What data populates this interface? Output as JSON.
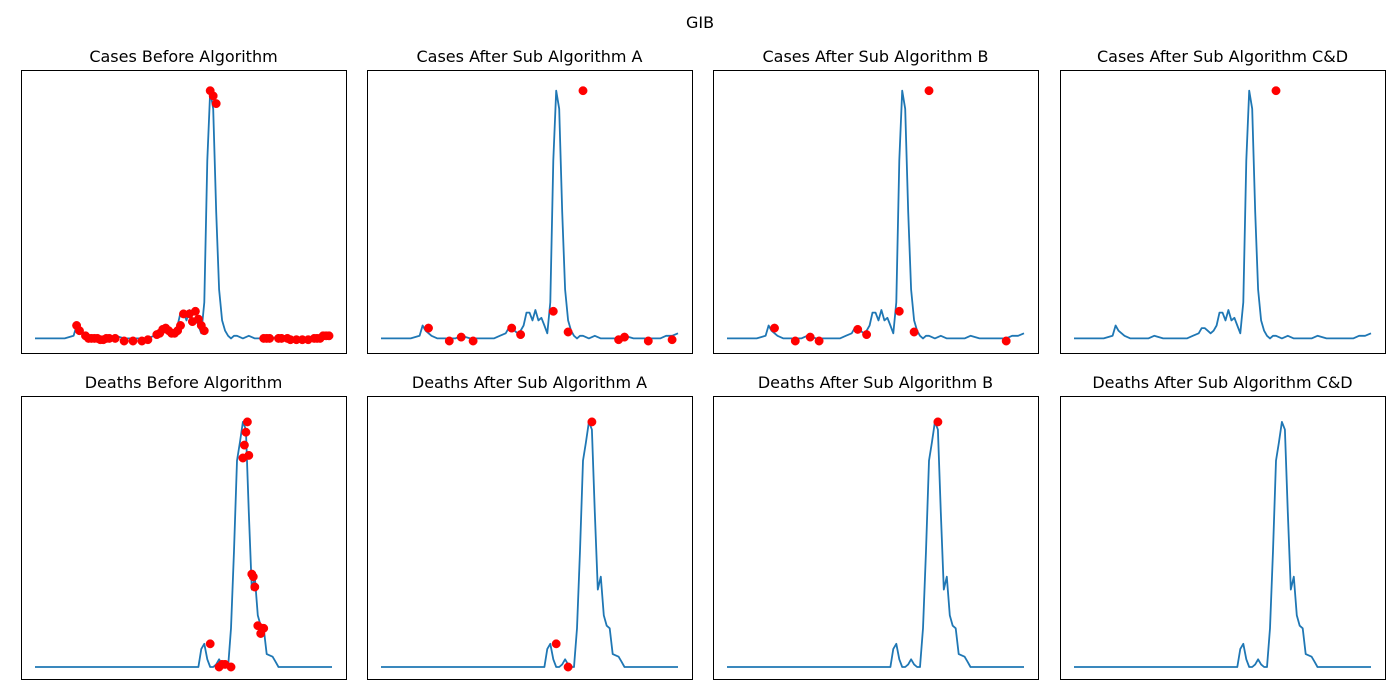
{
  "figure": {
    "suptitle": "GIB",
    "line_color": "#1f77b4",
    "marker_color": "#ff0000"
  },
  "chart_data": [
    {
      "type": "line",
      "title": "Cases Before Algorithm",
      "xlim": [
        0,
        100
      ],
      "ylim": [
        0,
        100
      ],
      "x": [
        0,
        5,
        10,
        13,
        14,
        15,
        17,
        19,
        21,
        23,
        25,
        27,
        30,
        33,
        36,
        38,
        40,
        42,
        43,
        44,
        45,
        46,
        47,
        48,
        49,
        50,
        51,
        52,
        53,
        54,
        55,
        56,
        57,
        58,
        59,
        60,
        61,
        62,
        63,
        64,
        65,
        66,
        67,
        68,
        70,
        72,
        74,
        75,
        76,
        78,
        80,
        82,
        85,
        88,
        90,
        92,
        94,
        96,
        98,
        100
      ],
      "y": [
        1,
        1,
        1,
        2,
        6,
        4,
        2,
        1,
        1,
        1,
        1,
        2,
        1,
        1,
        1,
        1,
        2,
        3,
        5,
        5,
        4,
        3,
        4,
        6,
        11,
        11,
        8,
        12,
        8,
        9,
        6,
        3,
        15,
        70,
        97,
        90,
        50,
        20,
        8,
        4,
        2,
        1,
        2,
        2,
        1,
        2,
        1,
        1,
        1,
        1,
        1,
        2,
        1,
        1,
        1,
        1,
        1,
        2,
        2,
        3
      ],
      "markers": {
        "x": [
          14,
          15,
          17,
          18,
          19,
          20,
          21,
          22,
          23,
          24,
          25,
          27,
          30,
          33,
          36,
          38,
          41,
          42,
          43,
          44,
          45,
          46,
          47,
          48,
          49,
          50,
          52,
          53,
          54,
          55,
          56,
          57,
          59,
          60,
          61,
          77,
          78,
          79,
          82,
          83,
          85,
          86,
          88,
          90,
          92,
          94,
          95,
          96,
          97,
          98,
          99
        ],
        "y": [
          6,
          4,
          2,
          1,
          1,
          1,
          1,
          0.5,
          0.5,
          1,
          1,
          1,
          0,
          0,
          0,
          0.5,
          2.5,
          3,
          4.5,
          5,
          4,
          3,
          3,
          4,
          6,
          10.5,
          10.5,
          7.5,
          11.5,
          8.5,
          6,
          4,
          97,
          95,
          92,
          1,
          1,
          1,
          1,
          1,
          1,
          0.5,
          0.5,
          0.5,
          0.5,
          1,
          1,
          1,
          2,
          2,
          2
        ]
      }
    },
    {
      "type": "line",
      "title": "Cases After Sub Algorithm A",
      "xlim": [
        0,
        100
      ],
      "ylim": [
        0,
        100
      ],
      "x": [
        0,
        5,
        10,
        13,
        14,
        15,
        17,
        19,
        21,
        23,
        25,
        27,
        30,
        33,
        36,
        38,
        40,
        42,
        43,
        44,
        45,
        46,
        47,
        48,
        49,
        50,
        51,
        52,
        53,
        54,
        55,
        56,
        57,
        58,
        59,
        60,
        61,
        62,
        63,
        64,
        65,
        66,
        67,
        68,
        70,
        72,
        74,
        75,
        76,
        78,
        80,
        82,
        85,
        88,
        90,
        92,
        94,
        96,
        98,
        100
      ],
      "y": [
        1,
        1,
        1,
        2,
        6,
        4,
        2,
        1,
        1,
        1,
        1,
        2,
        1,
        1,
        1,
        1,
        2,
        3,
        5,
        5,
        4,
        3,
        4,
        6,
        11,
        11,
        8,
        12,
        8,
        9,
        6,
        3,
        15,
        70,
        97,
        90,
        50,
        20,
        8,
        4,
        2,
        1,
        2,
        2,
        1,
        2,
        1,
        1,
        1,
        1,
        1,
        2,
        1,
        1,
        1,
        1,
        1,
        2,
        2,
        3
      ],
      "markers": {
        "x": [
          16,
          23,
          27,
          31,
          44,
          47,
          58,
          63,
          68,
          80,
          82,
          90,
          98
        ],
        "y": [
          5,
          0,
          1.5,
          0,
          5,
          2.5,
          11.5,
          3.5,
          97,
          0.5,
          1.5,
          0,
          0.5
        ]
      }
    },
    {
      "type": "line",
      "title": "Cases After Sub Algorithm B",
      "xlim": [
        0,
        100
      ],
      "ylim": [
        0,
        100
      ],
      "x": [
        0,
        5,
        10,
        13,
        14,
        15,
        17,
        19,
        21,
        23,
        25,
        27,
        30,
        33,
        36,
        38,
        40,
        42,
        43,
        44,
        45,
        46,
        47,
        48,
        49,
        50,
        51,
        52,
        53,
        54,
        55,
        56,
        57,
        58,
        59,
        60,
        61,
        62,
        63,
        64,
        65,
        66,
        67,
        68,
        70,
        72,
        74,
        75,
        76,
        78,
        80,
        82,
        85,
        88,
        90,
        92,
        94,
        96,
        98,
        100
      ],
      "y": [
        1,
        1,
        1,
        2,
        6,
        4,
        2,
        1,
        1,
        1,
        1,
        2,
        1,
        1,
        1,
        1,
        2,
        3,
        5,
        5,
        4,
        3,
        4,
        6,
        11,
        11,
        8,
        12,
        8,
        9,
        6,
        3,
        15,
        70,
        97,
        90,
        50,
        20,
        8,
        4,
        2,
        1,
        2,
        2,
        1,
        2,
        1,
        1,
        1,
        1,
        1,
        2,
        1,
        1,
        1,
        1,
        1,
        2,
        2,
        3
      ],
      "markers": {
        "x": [
          16,
          23,
          28,
          31,
          44,
          47,
          58,
          63,
          68,
          94
        ],
        "y": [
          5,
          0,
          1.5,
          0,
          4.5,
          2.5,
          11.5,
          3.5,
          97,
          0
        ]
      }
    },
    {
      "type": "line",
      "title": "Cases After Sub Algorithm C&D",
      "xlim": [
        0,
        100
      ],
      "ylim": [
        0,
        100
      ],
      "x": [
        0,
        5,
        10,
        13,
        14,
        15,
        17,
        19,
        21,
        23,
        25,
        27,
        30,
        33,
        36,
        38,
        40,
        42,
        43,
        44,
        45,
        46,
        47,
        48,
        49,
        50,
        51,
        52,
        53,
        54,
        55,
        56,
        57,
        58,
        59,
        60,
        61,
        62,
        63,
        64,
        65,
        66,
        67,
        68,
        70,
        72,
        74,
        75,
        76,
        78,
        80,
        82,
        85,
        88,
        90,
        92,
        94,
        96,
        98,
        100
      ],
      "y": [
        1,
        1,
        1,
        2,
        6,
        4,
        2,
        1,
        1,
        1,
        1,
        2,
        1,
        1,
        1,
        1,
        2,
        3,
        5,
        5,
        4,
        3,
        4,
        6,
        11,
        11,
        8,
        12,
        8,
        9,
        6,
        3,
        15,
        70,
        97,
        90,
        50,
        20,
        8,
        4,
        2,
        1,
        2,
        2,
        1,
        2,
        1,
        1,
        1,
        1,
        1,
        2,
        1,
        1,
        1,
        1,
        1,
        2,
        2,
        3
      ],
      "markers": {
        "x": [
          68
        ],
        "y": [
          97
        ]
      }
    },
    {
      "type": "line",
      "title": "Deaths Before Algorithm",
      "xlim": [
        0,
        100
      ],
      "ylim": [
        0,
        100
      ],
      "x": [
        0,
        40,
        55,
        56,
        57,
        58,
        59,
        60,
        61,
        62,
        63,
        64,
        65,
        66,
        67,
        68,
        69,
        70,
        71,
        72,
        73,
        74,
        75,
        76,
        77,
        78,
        80,
        81,
        82,
        83,
        85,
        100
      ],
      "y": [
        0,
        0,
        0,
        7,
        9,
        3,
        0,
        0,
        1,
        3,
        1,
        0,
        0,
        15,
        45,
        80,
        87,
        95,
        92,
        60,
        30,
        35,
        20,
        16,
        15,
        5,
        4,
        2,
        0,
        0,
        0,
        0
      ],
      "markers": {
        "x": [
          59,
          62,
          63,
          64,
          66,
          70,
          70.5,
          71,
          71.5,
          72,
          73,
          73.5,
          74,
          75,
          76,
          76.5,
          77
        ],
        "y": [
          9,
          0,
          1,
          1,
          0,
          81,
          86,
          91,
          95,
          82,
          36,
          35,
          31,
          16,
          13,
          15,
          15
        ]
      }
    },
    {
      "type": "line",
      "title": "Deaths After Sub Algorithm A",
      "xlim": [
        0,
        100
      ],
      "ylim": [
        0,
        100
      ],
      "x": [
        0,
        40,
        55,
        56,
        57,
        58,
        59,
        60,
        61,
        62,
        63,
        64,
        65,
        66,
        67,
        68,
        69,
        70,
        71,
        72,
        73,
        74,
        75,
        76,
        77,
        78,
        80,
        81,
        82,
        83,
        85,
        100
      ],
      "y": [
        0,
        0,
        0,
        7,
        9,
        3,
        0,
        0,
        1,
        3,
        1,
        0,
        0,
        15,
        45,
        80,
        87,
        95,
        92,
        60,
        30,
        35,
        20,
        16,
        15,
        5,
        4,
        2,
        0,
        0,
        0,
        0
      ],
      "markers": {
        "x": [
          59,
          63,
          71
        ],
        "y": [
          9,
          0,
          95
        ]
      }
    },
    {
      "type": "line",
      "title": "Deaths After Sub Algorithm B",
      "xlim": [
        0,
        100
      ],
      "ylim": [
        0,
        100
      ],
      "x": [
        0,
        40,
        55,
        56,
        57,
        58,
        59,
        60,
        61,
        62,
        63,
        64,
        65,
        66,
        67,
        68,
        69,
        70,
        71,
        72,
        73,
        74,
        75,
        76,
        77,
        78,
        80,
        81,
        82,
        83,
        85,
        100
      ],
      "y": [
        0,
        0,
        0,
        7,
        9,
        3,
        0,
        0,
        1,
        3,
        1,
        0,
        0,
        15,
        45,
        80,
        87,
        95,
        92,
        60,
        30,
        35,
        20,
        16,
        15,
        5,
        4,
        2,
        0,
        0,
        0,
        0
      ],
      "markers": {
        "x": [
          71
        ],
        "y": [
          95
        ]
      }
    },
    {
      "type": "line",
      "title": "Deaths After Sub Algorithm C&D",
      "xlim": [
        0,
        100
      ],
      "ylim": [
        0,
        100
      ],
      "x": [
        0,
        40,
        55,
        56,
        57,
        58,
        59,
        60,
        61,
        62,
        63,
        64,
        65,
        66,
        67,
        68,
        69,
        70,
        71,
        72,
        73,
        74,
        75,
        76,
        77,
        78,
        80,
        81,
        82,
        83,
        85,
        100
      ],
      "y": [
        0,
        0,
        0,
        7,
        9,
        3,
        0,
        0,
        1,
        3,
        1,
        0,
        0,
        15,
        45,
        80,
        87,
        95,
        92,
        60,
        30,
        35,
        20,
        16,
        15,
        5,
        4,
        2,
        0,
        0,
        0,
        0
      ],
      "markers": {
        "x": [],
        "y": []
      }
    }
  ]
}
